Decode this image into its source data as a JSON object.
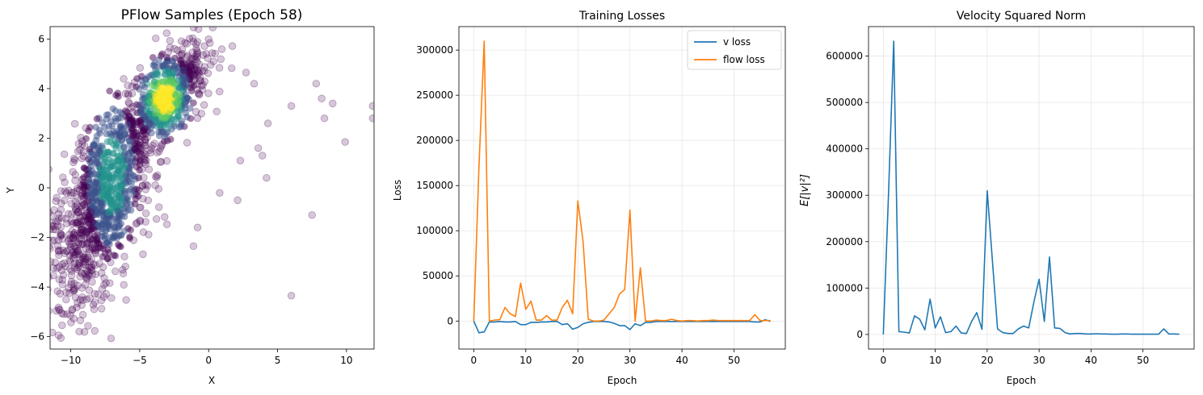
{
  "chart_data": [
    {
      "type": "scatter",
      "title": "PFlow Samples (Epoch 58)",
      "xlabel": "X",
      "ylabel": "Y",
      "xlim": [
        -11.5,
        12
      ],
      "ylim": [
        -6.5,
        6.5
      ],
      "xticks": [
        -10,
        -5,
        0,
        5,
        10
      ],
      "yticks": [
        -6,
        -4,
        -2,
        0,
        2,
        4,
        6
      ],
      "point_color": "#440154",
      "density_colormap": [
        "#440154",
        "#3b528b",
        "#21918c",
        "#5ec962",
        "#fde725"
      ],
      "density_peak": [
        -3.2,
        3.6
      ],
      "outliers": [
        [
          7.8,
          4.2
        ],
        [
          8.2,
          3.6
        ],
        [
          9,
          3.4
        ],
        [
          6,
          3.3
        ],
        [
          11.9,
          3.3
        ],
        [
          11.9,
          2.8
        ],
        [
          8.4,
          2.8
        ],
        [
          9.9,
          1.85
        ],
        [
          7.5,
          -1.1
        ],
        [
          6,
          -4.35
        ],
        [
          4.3,
          2.6
        ],
        [
          4.2,
          0.4
        ],
        [
          3.9,
          1.3
        ],
        [
          3.6,
          1.6
        ],
        [
          3.3,
          4.2
        ],
        [
          2.1,
          -0.5
        ],
        [
          2.3,
          1.1
        ],
        [
          0.8,
          -0.2
        ],
        [
          -0.8,
          -1.6
        ],
        [
          -1.1,
          -2.35
        ]
      ]
    },
    {
      "type": "line",
      "title": "Training Losses",
      "xlabel": "Epoch",
      "ylabel": "Loss",
      "xlim": [
        -2.85,
        59.85
      ],
      "ylim": [
        -31000,
        326000
      ],
      "xticks": [
        0,
        10,
        20,
        30,
        40,
        50
      ],
      "yticks": [
        0,
        50000,
        100000,
        150000,
        200000,
        250000,
        300000
      ],
      "grid": true,
      "legend": "top-right",
      "x": [
        0,
        1,
        2,
        3,
        4,
        5,
        6,
        7,
        8,
        9,
        10,
        11,
        12,
        13,
        14,
        15,
        16,
        17,
        18,
        19,
        20,
        21,
        22,
        23,
        24,
        25,
        26,
        27,
        28,
        29,
        30,
        31,
        32,
        33,
        34,
        35,
        36,
        37,
        38,
        39,
        40,
        41,
        42,
        43,
        44,
        45,
        46,
        47,
        48,
        49,
        50,
        51,
        52,
        53,
        54,
        55,
        56,
        57
      ],
      "series": [
        {
          "name": "v loss",
          "color": "#1f77b4",
          "values": [
            0,
            -13000,
            -12000,
            -1000,
            -1000,
            -500,
            -1000,
            -1000,
            -500,
            -4000,
            -4000,
            -1500,
            -1500,
            -1000,
            -1000,
            -500,
            -500,
            -4000,
            -3000,
            -9000,
            -7000,
            -3000,
            -1500,
            -500,
            -500,
            -500,
            -1000,
            -2500,
            -5000,
            -5000,
            -9500,
            -3000,
            -5000,
            -1500,
            -1500,
            -500,
            -500,
            -500,
            -500,
            -500,
            -500,
            -500,
            -500,
            -500,
            -500,
            -500,
            -500,
            -500,
            -500,
            -500,
            -500,
            -500,
            -500,
            -500,
            -1000,
            -1000,
            1500,
            -500
          ]
        },
        {
          "name": "flow loss",
          "color": "#ff7f0e",
          "values": [
            0,
            170000,
            310000,
            0,
            1000,
            1500,
            15000,
            8000,
            5000,
            42000,
            13000,
            22000,
            1000,
            1000,
            6000,
            1000,
            1000,
            15000,
            23000,
            8000,
            133000,
            88000,
            2000,
            0,
            0,
            1000,
            8000,
            15000,
            30000,
            35000,
            123000,
            0,
            59000,
            0,
            0,
            1000,
            500,
            500,
            2000,
            500,
            0,
            500,
            500,
            0,
            500,
            500,
            1000,
            500,
            500,
            500,
            500,
            500,
            500,
            500,
            7000,
            500,
            500,
            500
          ]
        }
      ]
    },
    {
      "type": "line",
      "title": "Velocity Squared Norm",
      "xlabel": "Epoch",
      "ylabel": "E[|v|²]",
      "xlim": [
        -2.85,
        59.85
      ],
      "ylim": [
        -31500,
        663500
      ],
      "xticks": [
        0,
        10,
        20,
        30,
        40,
        50
      ],
      "yticks": [
        0,
        100000,
        200000,
        300000,
        400000,
        500000,
        600000
      ],
      "grid": true,
      "x": [
        0,
        1,
        2,
        3,
        4,
        5,
        6,
        7,
        8,
        9,
        10,
        11,
        12,
        13,
        14,
        15,
        16,
        17,
        18,
        19,
        20,
        21,
        22,
        23,
        24,
        25,
        26,
        27,
        28,
        29,
        30,
        31,
        32,
        33,
        34,
        35,
        36,
        37,
        38,
        39,
        40,
        41,
        42,
        43,
        44,
        45,
        46,
        47,
        48,
        49,
        50,
        51,
        52,
        53,
        54,
        55,
        56,
        57
      ],
      "series": [
        {
          "color": "#1f77b4",
          "values": [
            0,
            300000,
            632000,
            6000,
            5000,
            3000,
            40000,
            33000,
            10000,
            76000,
            14000,
            38000,
            4000,
            6000,
            18000,
            3000,
            2000,
            28000,
            47000,
            11000,
            310000,
            160000,
            12000,
            4000,
            2000,
            2000,
            12000,
            18000,
            14000,
            70000,
            119000,
            28000,
            167000,
            14000,
            13000,
            4000,
            1000,
            2000,
            2000,
            1000,
            1000,
            1500,
            1000,
            1000,
            500,
            500,
            1000,
            1000,
            500,
            500,
            500,
            500,
            500,
            500,
            12000,
            1000,
            1000,
            500
          ]
        }
      ]
    }
  ]
}
